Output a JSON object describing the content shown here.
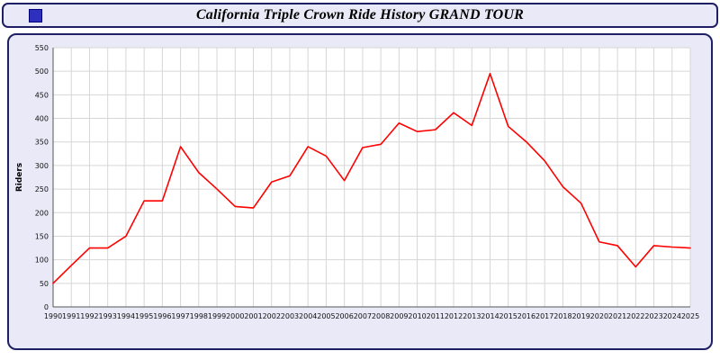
{
  "header": {
    "title": "California Triple Crown Ride History GRAND TOUR"
  },
  "colors": {
    "panel_background": "#e9e9f7",
    "panel_border": "#1f1f66",
    "plot_background": "#ffffff",
    "gridline": "#d6d6d6",
    "axis": "#555555",
    "line": "#ff0000"
  },
  "chart_data": {
    "type": "line",
    "title": "California Triple Crown Ride History GRAND TOUR",
    "xlabel": "",
    "ylabel": "Riders",
    "ylim": [
      0,
      550
    ],
    "ytick_step": 50,
    "grid": true,
    "legend": false,
    "categories": [
      1990,
      1991,
      1992,
      1993,
      1994,
      1995,
      1996,
      1997,
      1998,
      1999,
      2000,
      2001,
      2002,
      2003,
      2004,
      2005,
      2006,
      2007,
      2008,
      2009,
      2010,
      2011,
      2012,
      2013,
      2014,
      2015,
      2016,
      2017,
      2018,
      2019,
      2020,
      2021,
      2022,
      2023,
      2024,
      2025
    ],
    "series": [
      {
        "name": "Riders",
        "color": "#ff0000",
        "values": [
          50,
          88,
          125,
          125,
          150,
          225,
          225,
          340,
          285,
          250,
          213,
          210,
          265,
          278,
          340,
          320,
          268,
          338,
          345,
          390,
          372,
          376,
          412,
          385,
          495,
          383,
          350,
          310,
          255,
          220,
          138,
          130,
          85,
          130,
          127,
          125
        ]
      }
    ]
  }
}
